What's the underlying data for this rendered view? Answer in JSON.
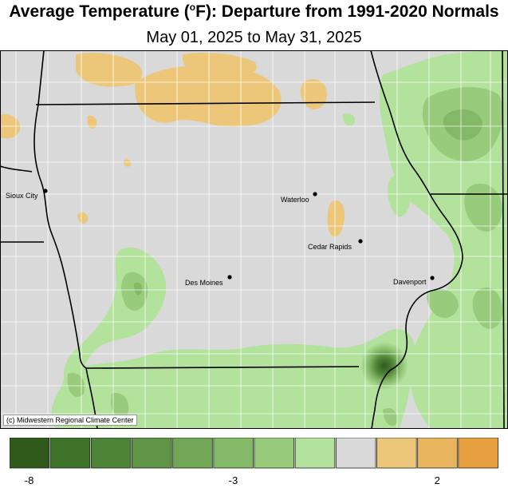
{
  "title_main": "Average Temperature (",
  "title_degree": "o",
  "title_rest": "F): Departure from 1991-2020 Normals",
  "subtitle": "May 01, 2025 to May 31, 2025",
  "credit": "(c) Midwestern Regional Climate Center",
  "cities": [
    {
      "name": "Sioux City"
    },
    {
      "name": "Waterloo"
    },
    {
      "name": "Cedar Rapids"
    },
    {
      "name": "Des Moines"
    },
    {
      "name": "Davenport"
    }
  ],
  "legend": {
    "colors": [
      "#2f5a1c",
      "#3f7229",
      "#4e8437",
      "#5f9446",
      "#70a655",
      "#82b866",
      "#98cc7c",
      "#b3e29c",
      "#d9d9d9",
      "#ecc77a",
      "#e9b45e",
      "#e8a040"
    ],
    "tick_labels": [
      {
        "value": -8,
        "text": "-8"
      },
      {
        "value": -3,
        "text": "-3"
      },
      {
        "value": 2,
        "text": "2"
      }
    ]
  },
  "map_colors": {
    "base": "#d9d9d9",
    "warm": "#ecc77a",
    "cool_light": "#b3e29c",
    "cool_mid": "#98cc7c",
    "cool_dark": "#5f9446",
    "cool_darkest": "#2f5a1c",
    "state_line": "#000000",
    "county_line": "#ffffff"
  }
}
